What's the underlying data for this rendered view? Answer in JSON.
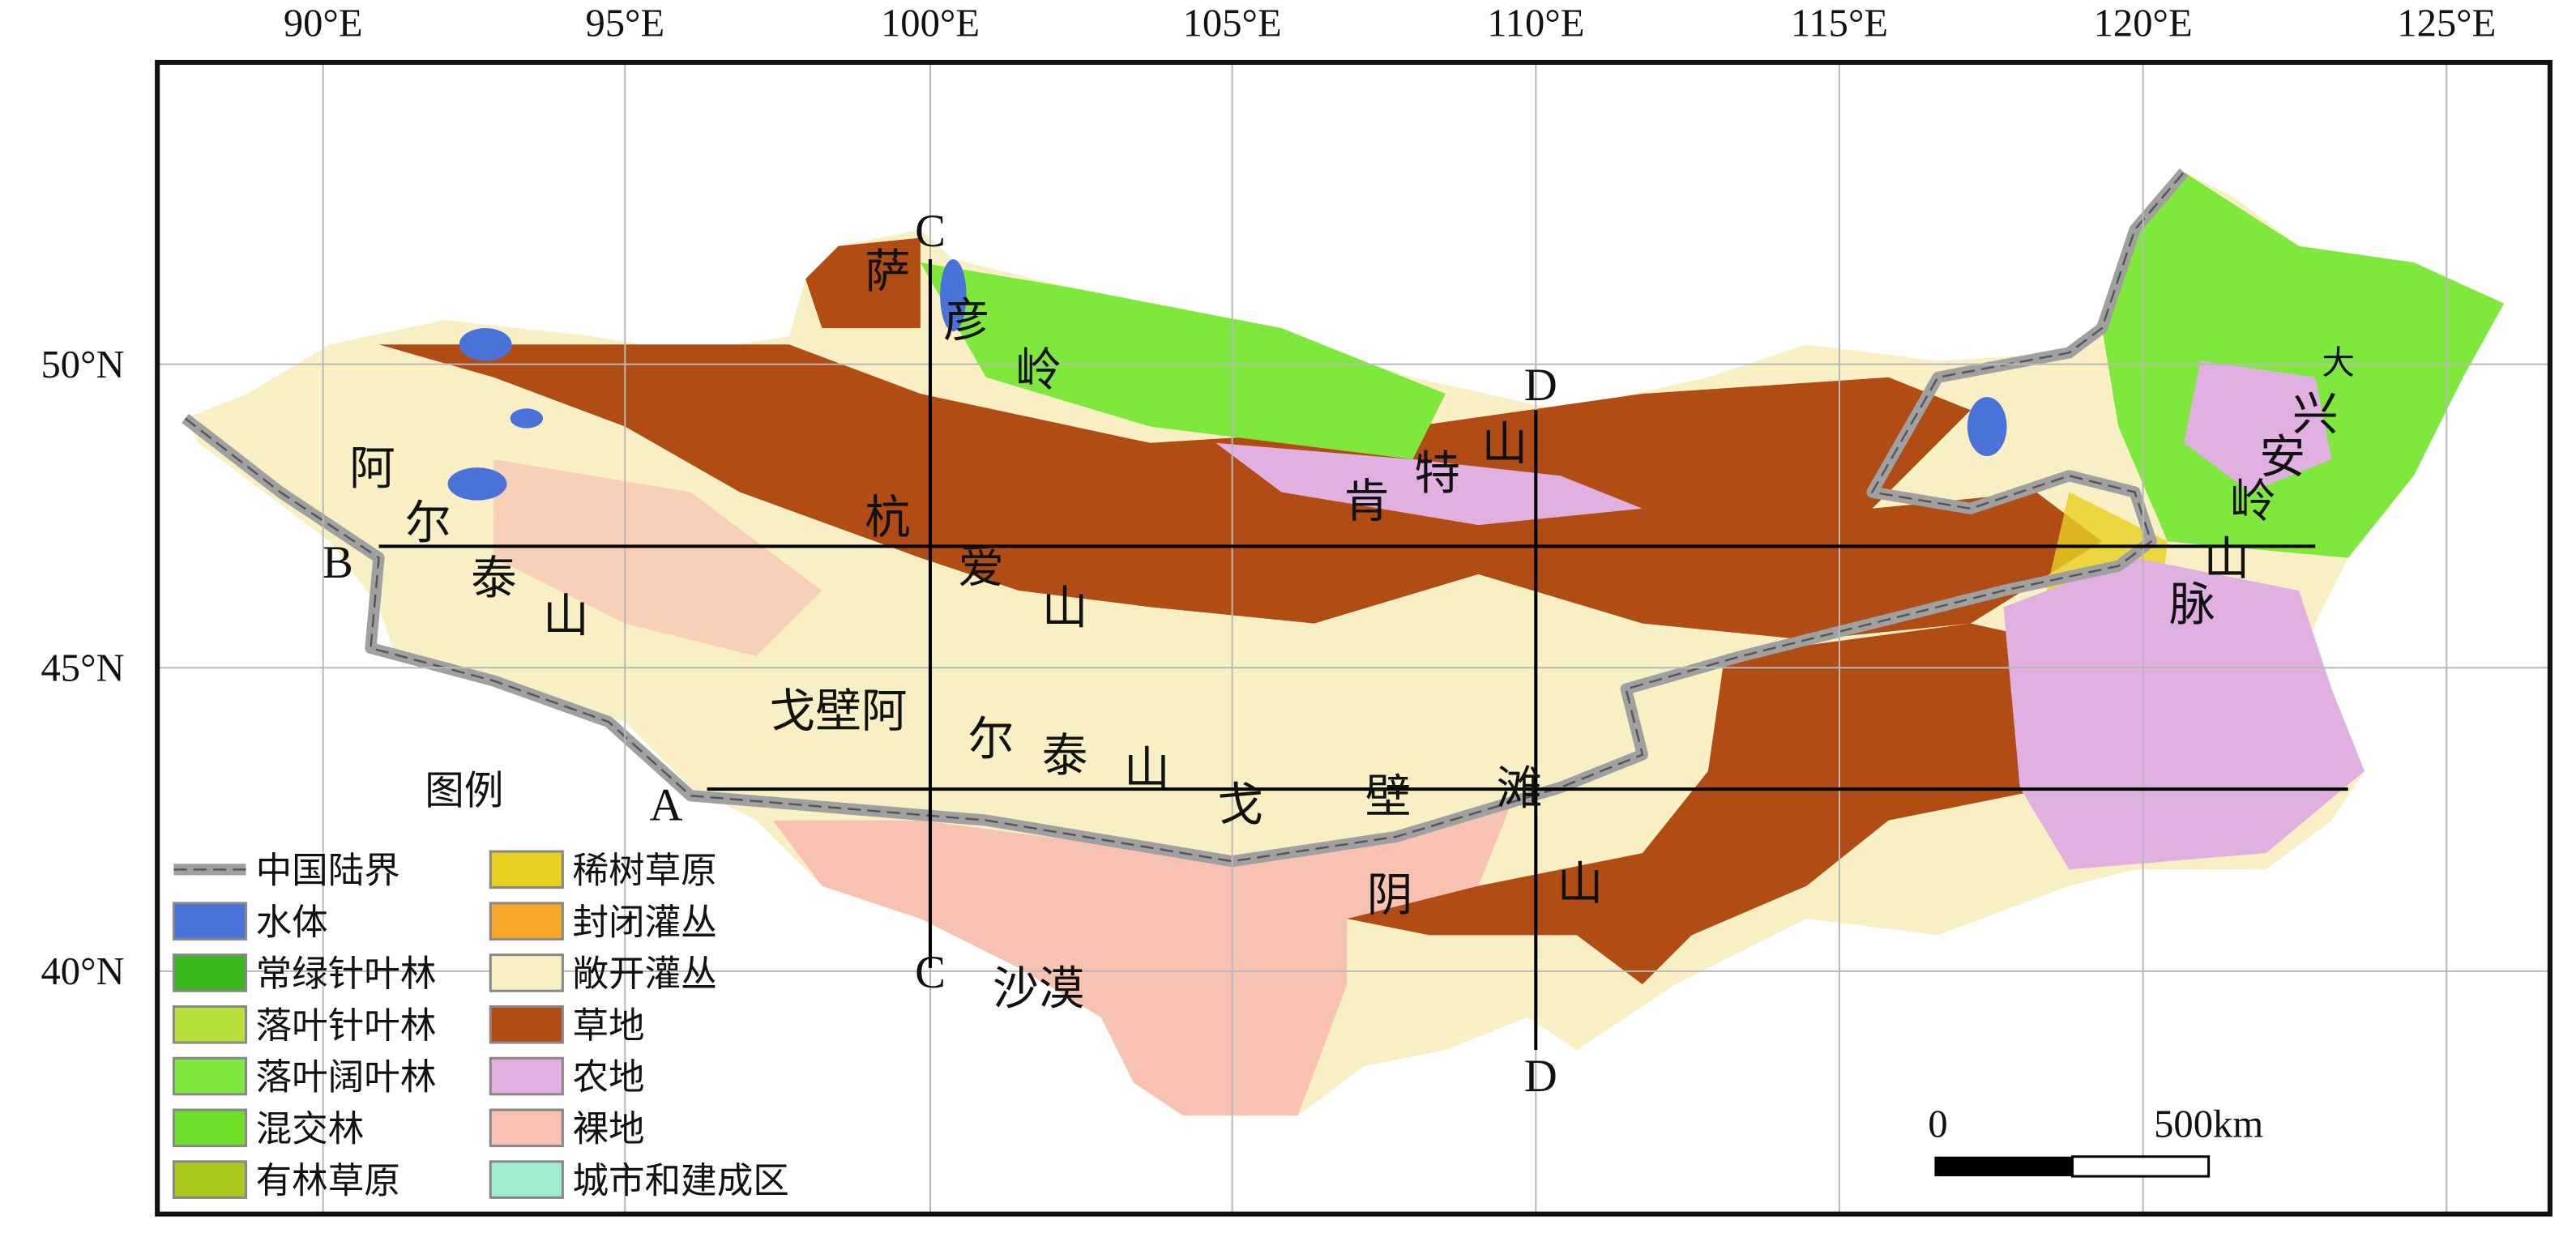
{
  "lon_labels": [
    "90°E",
    "95°E",
    "100°E",
    "105°E",
    "110°E",
    "115°E",
    "120°E",
    "125°E"
  ],
  "lat_labels": [
    "50°N",
    "45°N",
    "40°N"
  ],
  "places": [
    "萨",
    "彦",
    "岭",
    "阿",
    "尔",
    "泰",
    "山",
    "杭",
    "爱",
    "山",
    "肯",
    "特",
    "山",
    "大",
    "兴",
    "安",
    "岭",
    "山",
    "脉",
    "戈壁阿",
    "尔",
    "泰",
    "山",
    "戈",
    "壁",
    "滩",
    "阴",
    "山",
    "沙漠"
  ],
  "sections": [
    "C",
    "C",
    "D",
    "D",
    "B",
    "A"
  ],
  "legend": {
    "title": "图例",
    "items": [
      {
        "label": "中国陆界",
        "color": "#a0a0a0"
      },
      {
        "label": "水体",
        "color": "#4a72d8"
      },
      {
        "label": "常绿针叶林",
        "color": "#3cb81c"
      },
      {
        "label": "落叶针叶林",
        "color": "#b8e03c"
      },
      {
        "label": "落叶阔叶林",
        "color": "#7ee83c"
      },
      {
        "label": "混交林",
        "color": "#6ee02c"
      },
      {
        "label": "有林草原",
        "color": "#a8c81c"
      },
      {
        "label": "稀树草原",
        "color": "#e8d020"
      },
      {
        "label": "封闭灌丛",
        "color": "#f8a828"
      },
      {
        "label": "敞开灌丛",
        "color": "#f8f0c4"
      },
      {
        "label": "草地",
        "color": "#b04c14"
      },
      {
        "label": "农地",
        "color": "#e0b0e0"
      },
      {
        "label": "裸地",
        "color": "#f8c2b2"
      },
      {
        "label": "城市和建成区",
        "color": "#a0f0d0"
      }
    ]
  },
  "scale_bar": {
    "start": "0",
    "end": "500km"
  }
}
